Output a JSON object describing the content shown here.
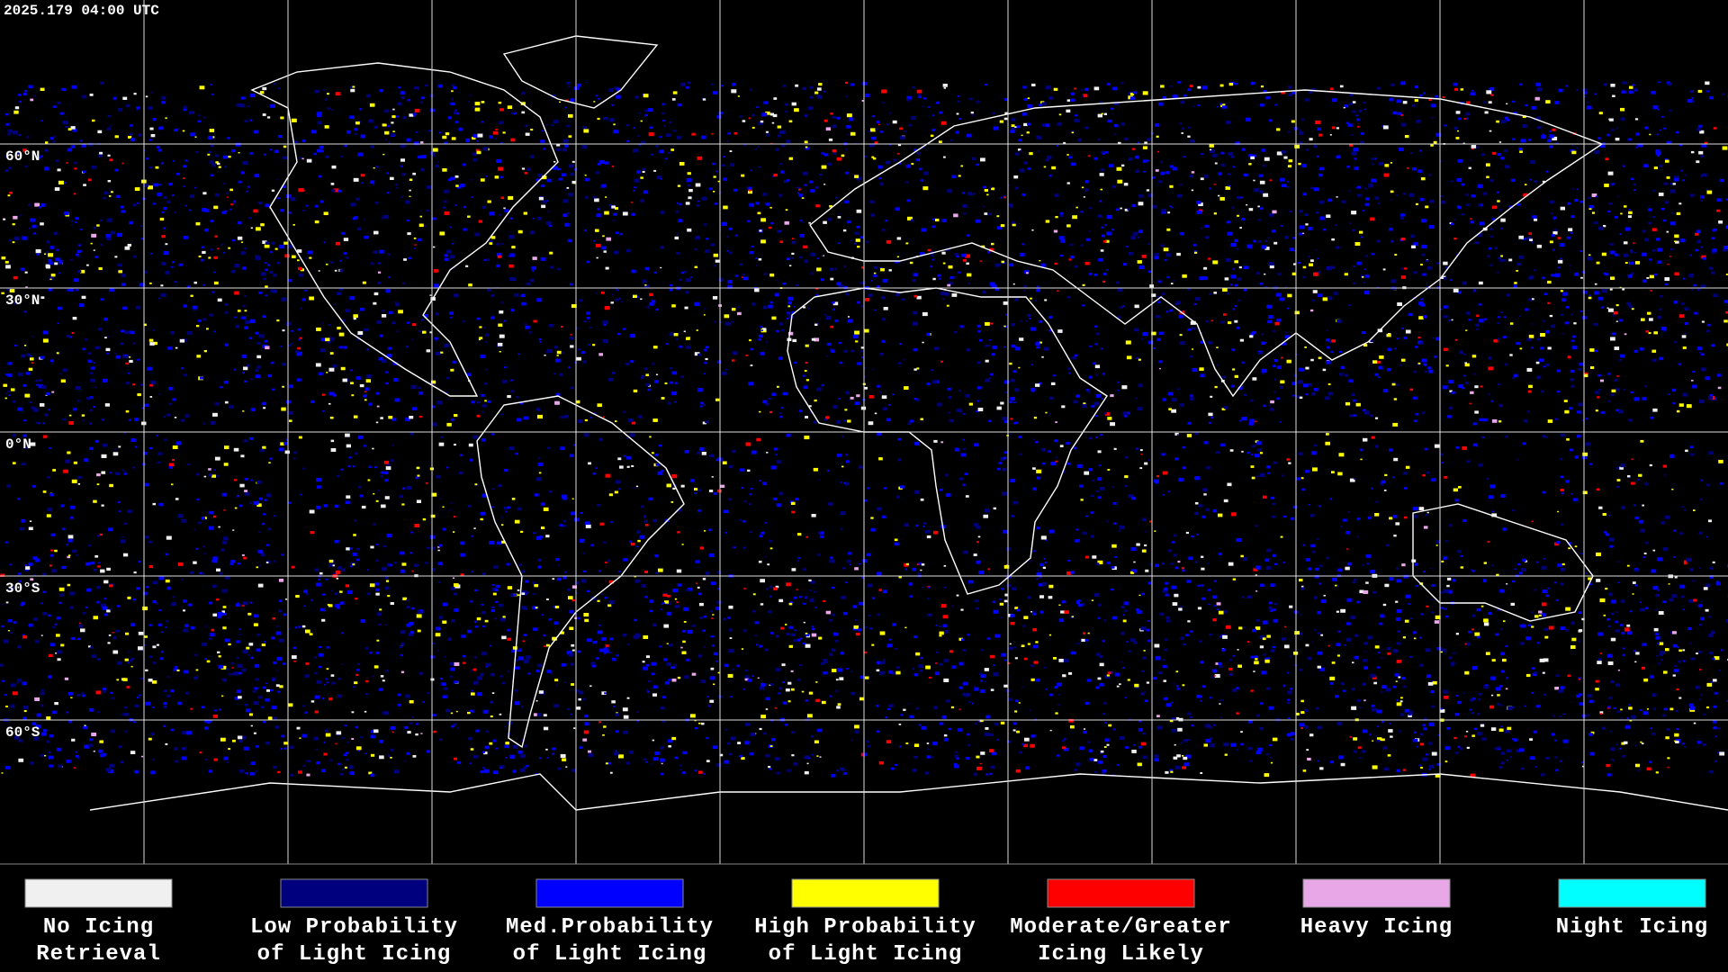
{
  "timestamp": "2025.179 04:00 UTC",
  "latitude_labels": [
    "60°N",
    "30°N",
    "0°N",
    "30°S",
    "60°S"
  ],
  "legend": [
    {
      "label": [
        "No Icing",
        "Retrieval"
      ],
      "color": "#f0f0f0"
    },
    {
      "label": [
        "Low Probability",
        "of Light Icing"
      ],
      "color": "#00007f"
    },
    {
      "label": [
        "Med.Probability",
        "of Light Icing"
      ],
      "color": "#0000ff"
    },
    {
      "label": [
        "High Probability",
        "of Light Icing"
      ],
      "color": "#ffff00"
    },
    {
      "label": [
        "Moderate/Greater",
        "Icing Likely"
      ],
      "color": "#ff0000"
    },
    {
      "label": [
        "Heavy Icing"
      ],
      "color": "#e8a8e8"
    },
    {
      "label": [
        "Night Icing"
      ],
      "color": "#00ffff"
    }
  ]
}
